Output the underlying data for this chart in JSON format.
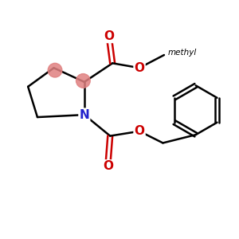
{
  "background_color": "#ffffff",
  "atom_colors": {
    "C": "#000000",
    "N": "#2222cc",
    "O": "#cc0000"
  },
  "bond_color": "#000000",
  "bond_width": 1.8,
  "stereo_color": "#e08080",
  "methyl_text": "methyl",
  "figsize": [
    3.0,
    3.0
  ],
  "dpi": 100
}
